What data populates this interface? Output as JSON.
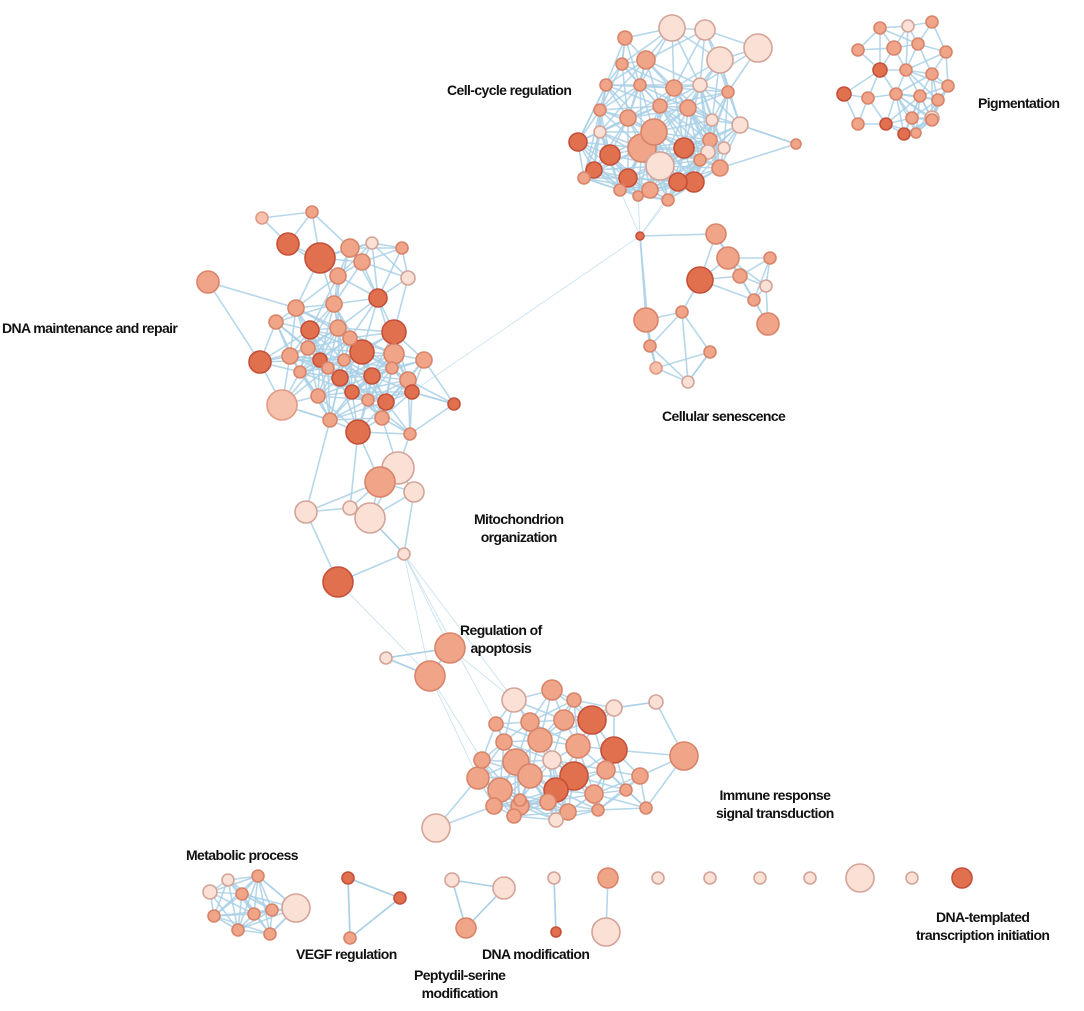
{
  "clusters": [
    {
      "id": "cell-cycle",
      "label": [
        "Cell-cycle regulation"
      ]
    },
    {
      "id": "pigmentation",
      "label": [
        "Pigmentation"
      ]
    },
    {
      "id": "dna-repair",
      "label": [
        "DNA maintenance and repair"
      ]
    },
    {
      "id": "senescence",
      "label": [
        "Cellular senescence"
      ]
    },
    {
      "id": "mitochondrion",
      "label": [
        "Mitochondrion",
        "organization"
      ]
    },
    {
      "id": "apoptosis",
      "label": [
        "Regulation of",
        "apoptosis"
      ]
    },
    {
      "id": "immune",
      "label": [
        "Immune response",
        "signal transduction"
      ]
    },
    {
      "id": "metabolic",
      "label": [
        "Metabolic process"
      ]
    },
    {
      "id": "vegf",
      "label": [
        "VEGF regulation"
      ]
    },
    {
      "id": "dna-modification",
      "label": [
        "DNA modification"
      ]
    },
    {
      "id": "peptidyl",
      "label": [
        "Peptydil-serine",
        "modification"
      ]
    },
    {
      "id": "transcription",
      "label": [
        "DNA-templated",
        "transcription initiation"
      ]
    }
  ],
  "colors": {
    "edge": "#a9d0e6",
    "node_dark": "#e0704e",
    "node_mid": "#f0a488",
    "node_light": "#fbe0d6",
    "node_stroke": "#c4503a"
  }
}
